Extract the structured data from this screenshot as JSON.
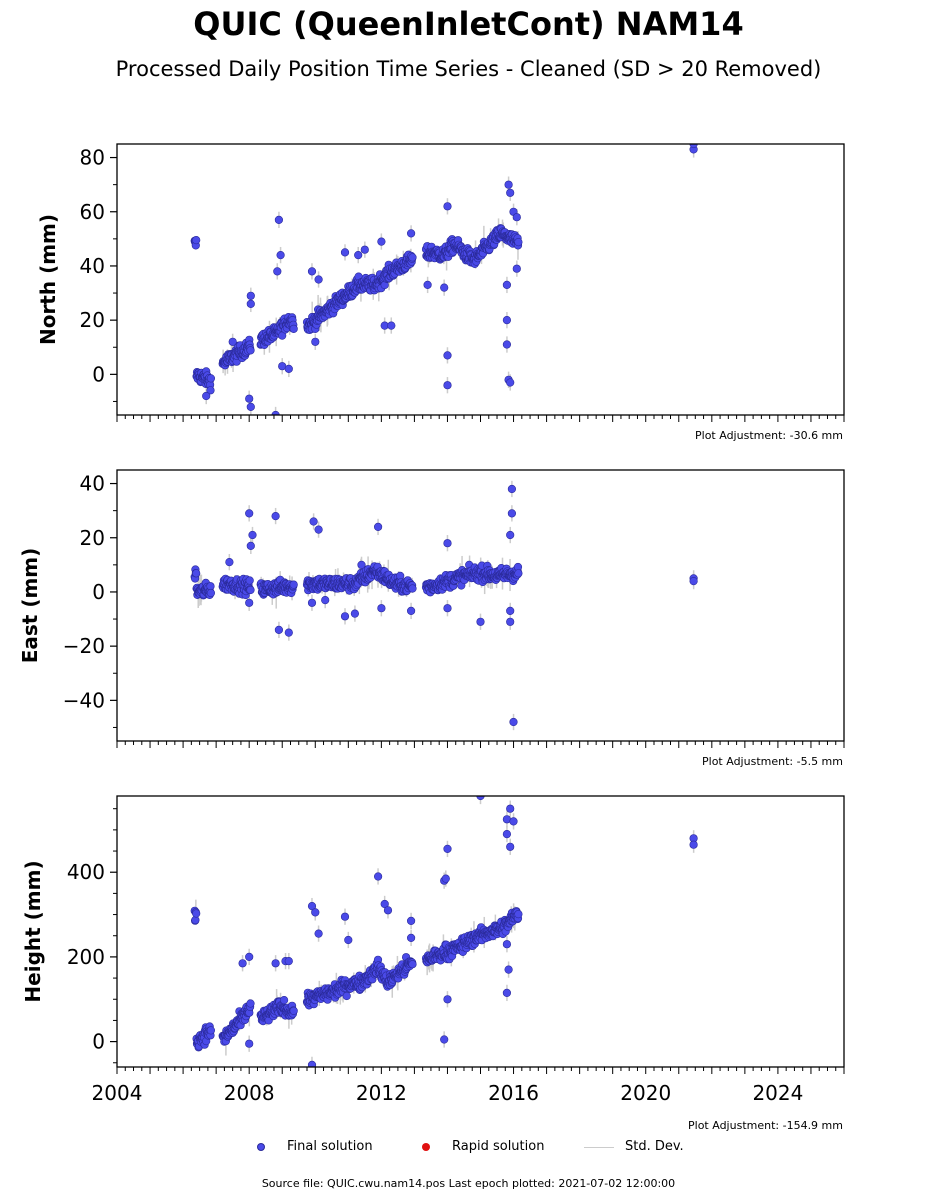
{
  "header": {
    "title": "QUIC (QueenInletCont) NAM14",
    "subtitle": "Processed Daily Position Time Series - Cleaned (SD > 20 Removed)"
  },
  "chart_data": [
    {
      "type": "scatter",
      "ylabel": "North (mm)",
      "adjustment": "Plot Adjustment: -30.6 mm",
      "xlim": [
        2004,
        2026
      ],
      "ylim": [
        -15,
        85
      ],
      "yticks": [
        0,
        20,
        40,
        60,
        80
      ],
      "ytick_labels": [
        "0",
        "20",
        "40",
        "60",
        "80"
      ],
      "yminor_step": 10,
      "anchors": [
        [
          2006.4,
          0
        ],
        [
          2006.9,
          -3
        ],
        [
          2007.2,
          4
        ],
        [
          2007.7,
          8
        ],
        [
          2008.0,
          10
        ],
        [
          2008.4,
          13
        ],
        [
          2008.8,
          15
        ],
        [
          2009.2,
          20
        ],
        [
          2009.8,
          18
        ],
        [
          2010.2,
          22
        ],
        [
          2010.8,
          28
        ],
        [
          2011.3,
          33
        ],
        [
          2011.8,
          33
        ],
        [
          2012.3,
          38
        ],
        [
          2012.9,
          42
        ],
        [
          2013.5,
          45
        ],
        [
          2013.9,
          44
        ],
        [
          2014.2,
          48
        ],
        [
          2014.8,
          42
        ],
        [
          2015.2,
          47
        ],
        [
          2015.6,
          52
        ],
        [
          2016.2,
          48
        ]
      ],
      "outliers": [
        [
          2006.7,
          -8
        ],
        [
          2007.5,
          12
        ],
        [
          2008.0,
          -9
        ],
        [
          2008.05,
          -12
        ],
        [
          2008.05,
          29
        ],
        [
          2008.05,
          26
        ],
        [
          2008.8,
          -15
        ],
        [
          2008.85,
          38
        ],
        [
          2008.9,
          57
        ],
        [
          2008.95,
          44
        ],
        [
          2009.0,
          3
        ],
        [
          2009.2,
          2
        ],
        [
          2009.9,
          38
        ],
        [
          2010.0,
          12
        ],
        [
          2010.1,
          35
        ],
        [
          2010.9,
          45
        ],
        [
          2011.3,
          44
        ],
        [
          2011.5,
          46
        ],
        [
          2012.0,
          49
        ],
        [
          2012.1,
          18
        ],
        [
          2012.3,
          18
        ],
        [
          2012.9,
          52
        ],
        [
          2013.4,
          33
        ],
        [
          2013.9,
          32
        ],
        [
          2014.0,
          62
        ],
        [
          2014.0,
          7
        ],
        [
          2014.0,
          -4
        ],
        [
          2015.8,
          11
        ],
        [
          2015.8,
          20
        ],
        [
          2015.8,
          33
        ],
        [
          2015.85,
          70
        ],
        [
          2015.9,
          67
        ],
        [
          2015.85,
          -2
        ],
        [
          2015.9,
          -3
        ],
        [
          2016.0,
          60
        ],
        [
          2016.1,
          58
        ],
        [
          2016.1,
          39
        ],
        [
          2021.45,
          83
        ],
        [
          2021.45,
          85
        ]
      ],
      "last_epoch_points": [
        [
          2021.45,
          84
        ]
      ],
      "series": [
        {
          "name": "Final solution",
          "color": "#4a4ae8"
        }
      ]
    },
    {
      "type": "scatter",
      "ylabel": "East (mm)",
      "adjustment": "Plot Adjustment: -5.5 mm",
      "xlim": [
        2004,
        2026
      ],
      "ylim": [
        -55,
        45
      ],
      "yticks": [
        -40,
        -20,
        0,
        20,
        40
      ],
      "ytick_labels": [
        "−40",
        "−20",
        "0",
        "20",
        "40"
      ],
      "yminor_step": 10,
      "anchors": [
        [
          2006.4,
          0
        ],
        [
          2006.9,
          1
        ],
        [
          2007.3,
          3
        ],
        [
          2007.9,
          2
        ],
        [
          2008.4,
          1
        ],
        [
          2009.2,
          2
        ],
        [
          2009.8,
          3
        ],
        [
          2010.5,
          3
        ],
        [
          2011.2,
          3
        ],
        [
          2011.8,
          8
        ],
        [
          2012.4,
          3
        ],
        [
          2012.9,
          2
        ],
        [
          2013.5,
          2
        ],
        [
          2014.0,
          4
        ],
        [
          2014.5,
          6
        ],
        [
          2015.0,
          7
        ],
        [
          2015.5,
          6
        ],
        [
          2016.1,
          7
        ]
      ],
      "outliers": [
        [
          2007.4,
          11
        ],
        [
          2008.0,
          -4
        ],
        [
          2008.05,
          17
        ],
        [
          2008.0,
          29
        ],
        [
          2008.1,
          21
        ],
        [
          2008.8,
          28
        ],
        [
          2008.9,
          -14
        ],
        [
          2009.2,
          -15
        ],
        [
          2009.9,
          -4
        ],
        [
          2009.95,
          26
        ],
        [
          2010.1,
          23
        ],
        [
          2010.3,
          -3
        ],
        [
          2010.9,
          -9
        ],
        [
          2011.2,
          -8
        ],
        [
          2011.4,
          10
        ],
        [
          2011.9,
          24
        ],
        [
          2012.0,
          -6
        ],
        [
          2012.9,
          -7
        ],
        [
          2014.0,
          18
        ],
        [
          2014.0,
          -6
        ],
        [
          2015.0,
          -11
        ],
        [
          2015.9,
          -7
        ],
        [
          2015.9,
          -11
        ],
        [
          2015.95,
          38
        ],
        [
          2015.95,
          29
        ],
        [
          2015.9,
          21
        ],
        [
          2016.0,
          -48
        ],
        [
          2021.45,
          5
        ],
        [
          2021.45,
          4
        ]
      ],
      "series": [
        {
          "name": "Final solution",
          "color": "#4a4ae8"
        }
      ]
    },
    {
      "type": "scatter",
      "ylabel": "Height (mm)",
      "adjustment": "Plot Adjustment: -154.9 mm",
      "xlim": [
        2004,
        2026
      ],
      "ylim": [
        -60,
        580
      ],
      "yticks": [
        0,
        200,
        400
      ],
      "ytick_labels": [
        "0",
        "200",
        "400"
      ],
      "yminor_step": 50,
      "xticks": [
        2004,
        2008,
        2012,
        2016,
        2020,
        2024
      ],
      "xtick_labels": [
        "2004",
        "2008",
        "2012",
        "2016",
        "2020",
        "2024"
      ],
      "anchors": [
        [
          2006.4,
          0
        ],
        [
          2006.8,
          25
        ],
        [
          2007.2,
          5
        ],
        [
          2007.8,
          55
        ],
        [
          2008.1,
          90
        ],
        [
          2008.4,
          55
        ],
        [
          2008.9,
          80
        ],
        [
          2009.4,
          70
        ],
        [
          2009.8,
          100
        ],
        [
          2010.2,
          110
        ],
        [
          2010.6,
          120
        ],
        [
          2011.0,
          135
        ],
        [
          2011.4,
          140
        ],
        [
          2011.9,
          175
        ],
        [
          2012.2,
          140
        ],
        [
          2012.8,
          180
        ],
        [
          2013.4,
          195
        ],
        [
          2013.9,
          210
        ],
        [
          2014.4,
          225
        ],
        [
          2014.8,
          245
        ],
        [
          2015.3,
          260
        ],
        [
          2015.7,
          270
        ],
        [
          2016.1,
          300
        ]
      ],
      "outliers": [
        [
          2007.8,
          185
        ],
        [
          2008.0,
          200
        ],
        [
          2008.0,
          -5
        ],
        [
          2008.8,
          185
        ],
        [
          2009.1,
          190
        ],
        [
          2009.2,
          190
        ],
        [
          2009.9,
          -55
        ],
        [
          2009.9,
          320
        ],
        [
          2010.0,
          305
        ],
        [
          2010.1,
          255
        ],
        [
          2010.9,
          295
        ],
        [
          2011.0,
          240
        ],
        [
          2011.9,
          390
        ],
        [
          2012.1,
          325
        ],
        [
          2012.2,
          310
        ],
        [
          2012.9,
          285
        ],
        [
          2012.9,
          245
        ],
        [
          2013.9,
          380
        ],
        [
          2013.95,
          385
        ],
        [
          2014.0,
          455
        ],
        [
          2014.0,
          100
        ],
        [
          2013.9,
          5
        ],
        [
          2015.0,
          580
        ],
        [
          2015.8,
          525
        ],
        [
          2015.8,
          490
        ],
        [
          2015.9,
          550
        ],
        [
          2016.0,
          520
        ],
        [
          2015.8,
          115
        ],
        [
          2015.85,
          170
        ],
        [
          2015.9,
          460
        ],
        [
          2015.8,
          230
        ],
        [
          2021.45,
          480
        ],
        [
          2021.45,
          465
        ]
      ],
      "series": [
        {
          "name": "Final solution",
          "color": "#4a4ae8"
        }
      ]
    }
  ],
  "legend": {
    "final_label": "Final solution",
    "rapid_label": "Rapid solution",
    "sd_label": "Std. Dev."
  },
  "footer": {
    "source": "Source file: QUIC.cwu.nam14.pos  Last epoch plotted: 2021-07-02 12:00:00"
  },
  "colors": {
    "final_fill": "#4a4ae8",
    "final_edge": "#2a2a9a",
    "rapid": "#e01010",
    "sd_line": "#cccccc"
  }
}
